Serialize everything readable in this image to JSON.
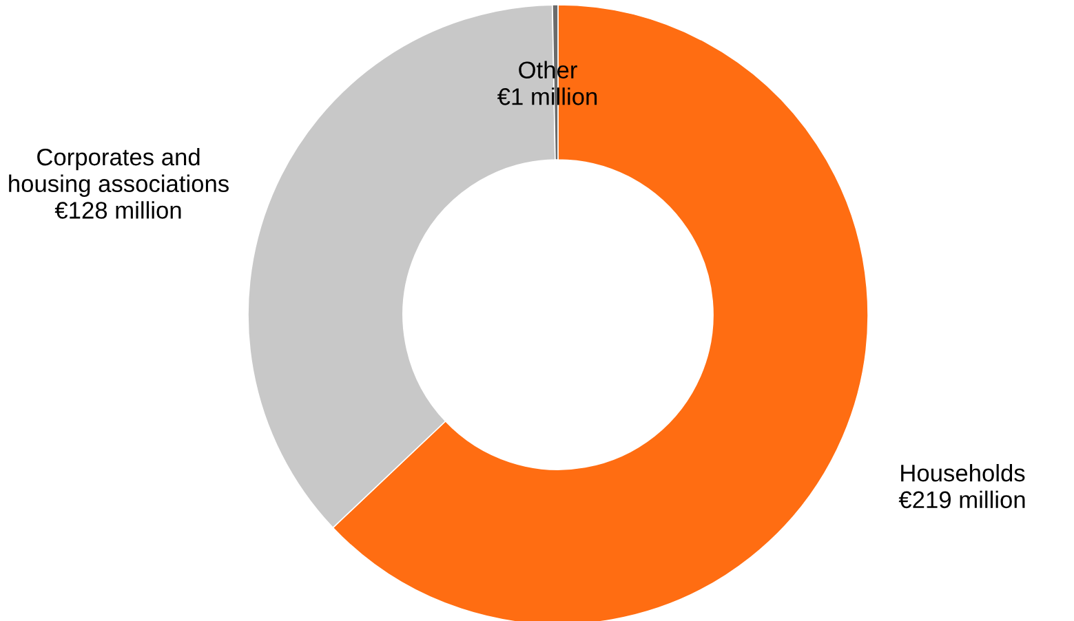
{
  "chart_data": {
    "type": "donut",
    "categories": [
      "Households",
      "Corporates and housing associations",
      "Other"
    ],
    "values": [
      219,
      128,
      1
    ],
    "colors": [
      "#ff6d12",
      "#c8c8c8",
      "#6b6b6b"
    ],
    "value_labels": [
      "€219 million",
      "€128 million",
      "€1 million"
    ],
    "legend": false
  }
}
